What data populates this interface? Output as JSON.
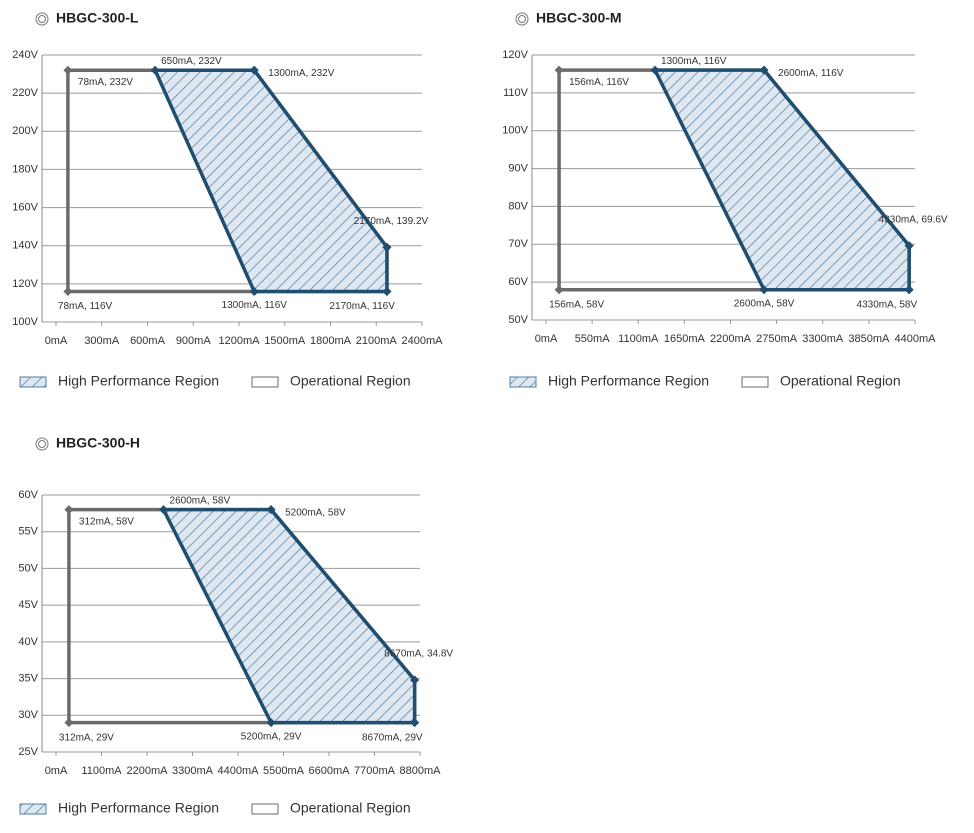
{
  "chart_data": [
    {
      "type": "region",
      "title": "HBGC-300-L",
      "xlim": [
        0,
        2400
      ],
      "ylim": [
        100,
        240
      ],
      "xticks": [
        {
          "value": 0,
          "label": "0mA"
        },
        {
          "value": 300,
          "label": "300mA"
        },
        {
          "value": 600,
          "label": "600mA"
        },
        {
          "value": 900,
          "label": "900mA"
        },
        {
          "value": 1200,
          "label": "1200mA"
        },
        {
          "value": 1500,
          "label": "1500mA"
        },
        {
          "value": 1800,
          "label": "1800mA"
        },
        {
          "value": 2100,
          "label": "2100mA"
        },
        {
          "value": 2400,
          "label": "2400mA"
        }
      ],
      "yticks": [
        {
          "value": 100,
          "label": "100V"
        },
        {
          "value": 120,
          "label": "120V"
        },
        {
          "value": 140,
          "label": "140V"
        },
        {
          "value": 160,
          "label": "160V"
        },
        {
          "value": 180,
          "label": "180V"
        },
        {
          "value": 200,
          "label": "200V"
        },
        {
          "value": 220,
          "label": "220V"
        },
        {
          "value": 240,
          "label": "240V"
        }
      ],
      "grid": true,
      "series": [
        {
          "name": "Operational Region",
          "color": "#6b6b6b",
          "x": [
            78,
            1300,
            2170,
            2170,
            78
          ],
          "values": [
            232,
            232,
            139.2,
            116,
            116
          ],
          "value_labels": [
            "78mA, 232V",
            null,
            null,
            null,
            "78mA, 116V"
          ]
        },
        {
          "name": "High Performance Region",
          "color": "#1f4e70",
          "x": [
            650,
            1300,
            2170,
            2170,
            1300
          ],
          "values": [
            232,
            232,
            139.2,
            116,
            116
          ],
          "value_labels": [
            "650mA, 232V",
            "1300mA, 232V",
            "2170mA, 139.2V",
            "2170mA, 116V",
            "1300mA, 116V"
          ]
        }
      ]
    },
    {
      "type": "region",
      "title": "HBGC-300-M",
      "xlim": [
        0,
        4400
      ],
      "ylim": [
        50,
        120
      ],
      "xticks": [
        {
          "value": 0,
          "label": "0mA"
        },
        {
          "value": 550,
          "label": "550mA"
        },
        {
          "value": 1100,
          "label": "1100mA"
        },
        {
          "value": 1650,
          "label": "1650mA"
        },
        {
          "value": 2200,
          "label": "2200mA"
        },
        {
          "value": 2750,
          "label": "2750mA"
        },
        {
          "value": 3300,
          "label": "3300mA"
        },
        {
          "value": 3850,
          "label": "3850mA"
        },
        {
          "value": 4400,
          "label": "4400mA"
        }
      ],
      "yticks": [
        {
          "value": 50,
          "label": "50V"
        },
        {
          "value": 60,
          "label": "60V"
        },
        {
          "value": 70,
          "label": "70V"
        },
        {
          "value": 80,
          "label": "80V"
        },
        {
          "value": 90,
          "label": "90V"
        },
        {
          "value": 100,
          "label": "100V"
        },
        {
          "value": 110,
          "label": "110V"
        },
        {
          "value": 120,
          "label": "120V"
        }
      ],
      "grid": true,
      "series": [
        {
          "name": "Operational Region",
          "color": "#6b6b6b",
          "x": [
            156,
            2600,
            4330,
            4330,
            156
          ],
          "values": [
            116,
            116,
            69.6,
            58,
            58
          ],
          "value_labels": [
            "156mA, 116V",
            null,
            null,
            null,
            "156mA, 58V"
          ]
        },
        {
          "name": "High Performance Region",
          "color": "#1f4e70",
          "x": [
            1300,
            2600,
            4330,
            4330,
            2600
          ],
          "values": [
            116,
            116,
            69.6,
            58,
            58
          ],
          "value_labels": [
            "1300mA, 116V",
            "2600mA, 116V",
            "4330mA, 69.6V",
            "4330mA, 58V",
            "2600mA, 58V"
          ]
        }
      ]
    },
    {
      "type": "region",
      "title": "HBGC-300-H",
      "xlim": [
        0,
        8800
      ],
      "ylim": [
        25,
        60
      ],
      "xticks": [
        {
          "value": 0,
          "label": "0mA"
        },
        {
          "value": 1100,
          "label": "1100mA"
        },
        {
          "value": 2200,
          "label": "2200mA"
        },
        {
          "value": 3300,
          "label": "3300mA"
        },
        {
          "value": 4400,
          "label": "4400mA"
        },
        {
          "value": 5500,
          "label": "5500mA"
        },
        {
          "value": 6600,
          "label": "6600mA"
        },
        {
          "value": 7700,
          "label": "7700mA"
        },
        {
          "value": 8800,
          "label": "8800mA"
        }
      ],
      "yticks": [
        {
          "value": 25,
          "label": "25V"
        },
        {
          "value": 30,
          "label": "30V"
        },
        {
          "value": 35,
          "label": "35V"
        },
        {
          "value": 40,
          "label": "40V"
        },
        {
          "value": 45,
          "label": "45V"
        },
        {
          "value": 50,
          "label": "50V"
        },
        {
          "value": 55,
          "label": "55V"
        },
        {
          "value": 60,
          "label": "60V"
        }
      ],
      "grid": true,
      "series": [
        {
          "name": "Operational Region",
          "color": "#6b6b6b",
          "x": [
            312,
            5200,
            8670,
            8670,
            312
          ],
          "values": [
            58,
            58,
            34.8,
            29,
            29
          ],
          "value_labels": [
            "312mA, 58V",
            null,
            null,
            null,
            "312mA, 29V"
          ]
        },
        {
          "name": "High Performance Region",
          "color": "#1f4e70",
          "x": [
            2600,
            5200,
            8670,
            8670,
            5200
          ],
          "values": [
            58,
            58,
            34.8,
            29,
            29
          ],
          "value_labels": [
            "2600mA, 58V",
            "5200mA, 58V",
            "8670mA, 34.8V",
            "8670mA, 29V",
            "5200mA, 29V"
          ]
        }
      ]
    }
  ]
}
